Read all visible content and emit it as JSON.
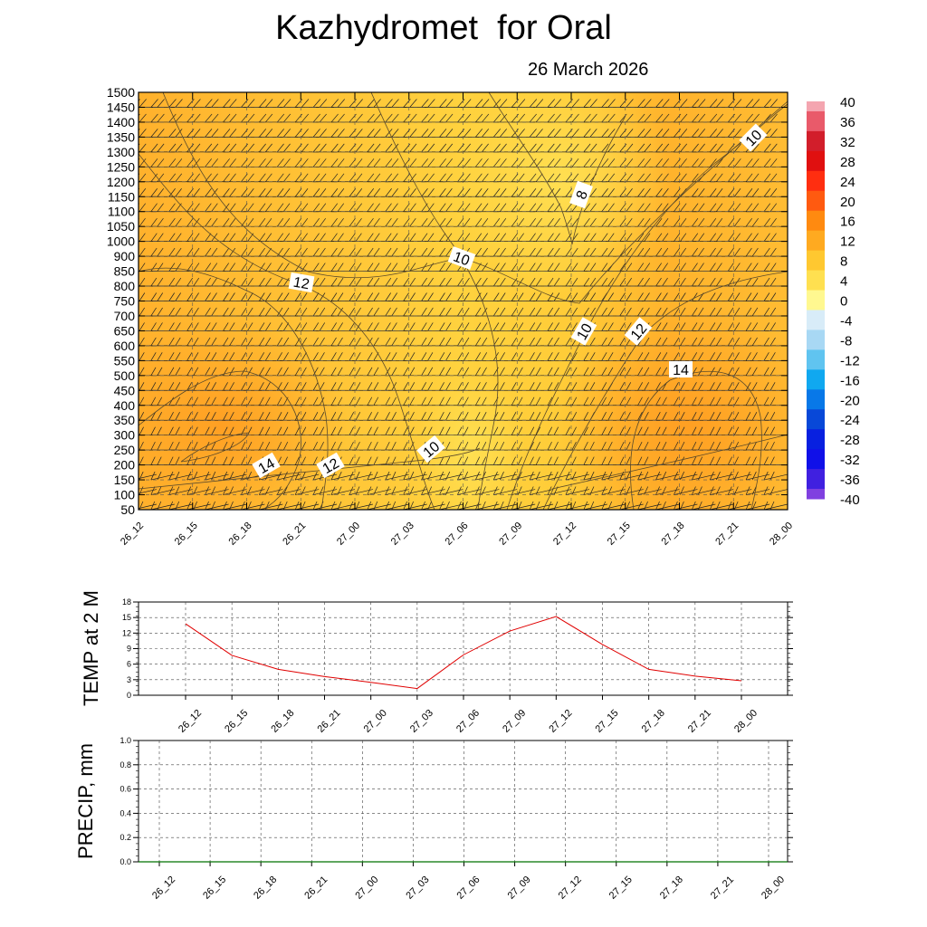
{
  "title": "Kazhydromet  for Oral",
  "subtitle": "26 March 2026",
  "chart_data": [
    {
      "type": "heatmap",
      "name": "vertical temperature cross-section",
      "y_tick_labels": [
        "50",
        "100",
        "150",
        "200",
        "250",
        "300",
        "350",
        "400",
        "450",
        "500",
        "550",
        "600",
        "650",
        "700",
        "750",
        "800",
        "850",
        "900",
        "1000",
        "1050",
        "1100",
        "1150",
        "1200",
        "1250",
        "1300",
        "1350",
        "1400",
        "1450",
        "1500"
      ],
      "x_tick_labels": [
        "26_12",
        "26_15",
        "26_18",
        "26_21",
        "27_00",
        "27_03",
        "27_06",
        "27_09",
        "27_12",
        "27_15",
        "27_18",
        "27_21",
        "28_00"
      ],
      "colorbar_labels": [
        "40",
        "36",
        "32",
        "28",
        "24",
        "20",
        "16",
        "12",
        "8",
        "4",
        "0",
        "-4",
        "-8",
        "-12",
        "-16",
        "-20",
        "-24",
        "-28",
        "-32",
        "-36",
        "-40"
      ],
      "colorbar_colors": [
        "#f4a5b0",
        "#e95a6a",
        "#d21e2b",
        "#e01010",
        "#ff2e10",
        "#ff5a10",
        "#ff8a10",
        "#ffaa20",
        "#ffc830",
        "#ffe050",
        "#fff890",
        "#d8ecf8",
        "#a8d8f4",
        "#60c4f0",
        "#10a8f0",
        "#0878e8",
        "#0848d8",
        "#0820e0",
        "#1010e8",
        "#4020e0",
        "#8040e0"
      ],
      "contour_labels": [
        {
          "text": "8"
        },
        {
          "text": "10"
        },
        {
          "text": "10"
        },
        {
          "text": "10"
        },
        {
          "text": "10"
        },
        {
          "text": "12"
        },
        {
          "text": "12"
        },
        {
          "text": "12"
        },
        {
          "text": "14"
        },
        {
          "text": "14"
        }
      ]
    },
    {
      "type": "line",
      "ylabel": "TEMP at 2 M",
      "ylim": [
        0,
        18
      ],
      "y_tick_labels": [
        "0",
        "3",
        "6",
        "9",
        "12",
        "15",
        "18"
      ],
      "categories": [
        "26_12",
        "26_15",
        "26_18",
        "26_21",
        "27_00",
        "27_03",
        "27_06",
        "27_09",
        "27_12",
        "27_15",
        "27_18",
        "27_21",
        "28_00"
      ],
      "values": [
        13.8,
        7.7,
        5.0,
        3.6,
        2.5,
        1.3,
        7.8,
        12.4,
        15.2,
        9.8,
        5.0,
        3.7,
        2.8
      ],
      "color": "#e00000"
    },
    {
      "type": "line",
      "ylabel": "PRECIP, mm",
      "ylim": [
        0,
        1.0
      ],
      "y_tick_labels": [
        "0.0",
        "0.2",
        "0.4",
        "0.6",
        "0.8",
        "1.0"
      ],
      "categories": [
        "26_12",
        "26_15",
        "26_18",
        "26_21",
        "27_00",
        "27_03",
        "27_06",
        "27_09",
        "27_12",
        "27_15",
        "27_18",
        "27_21",
        "28_00"
      ],
      "values": [
        0,
        0,
        0,
        0,
        0,
        0,
        0,
        0,
        0,
        0,
        0,
        0,
        0
      ],
      "color": "#007000"
    }
  ]
}
